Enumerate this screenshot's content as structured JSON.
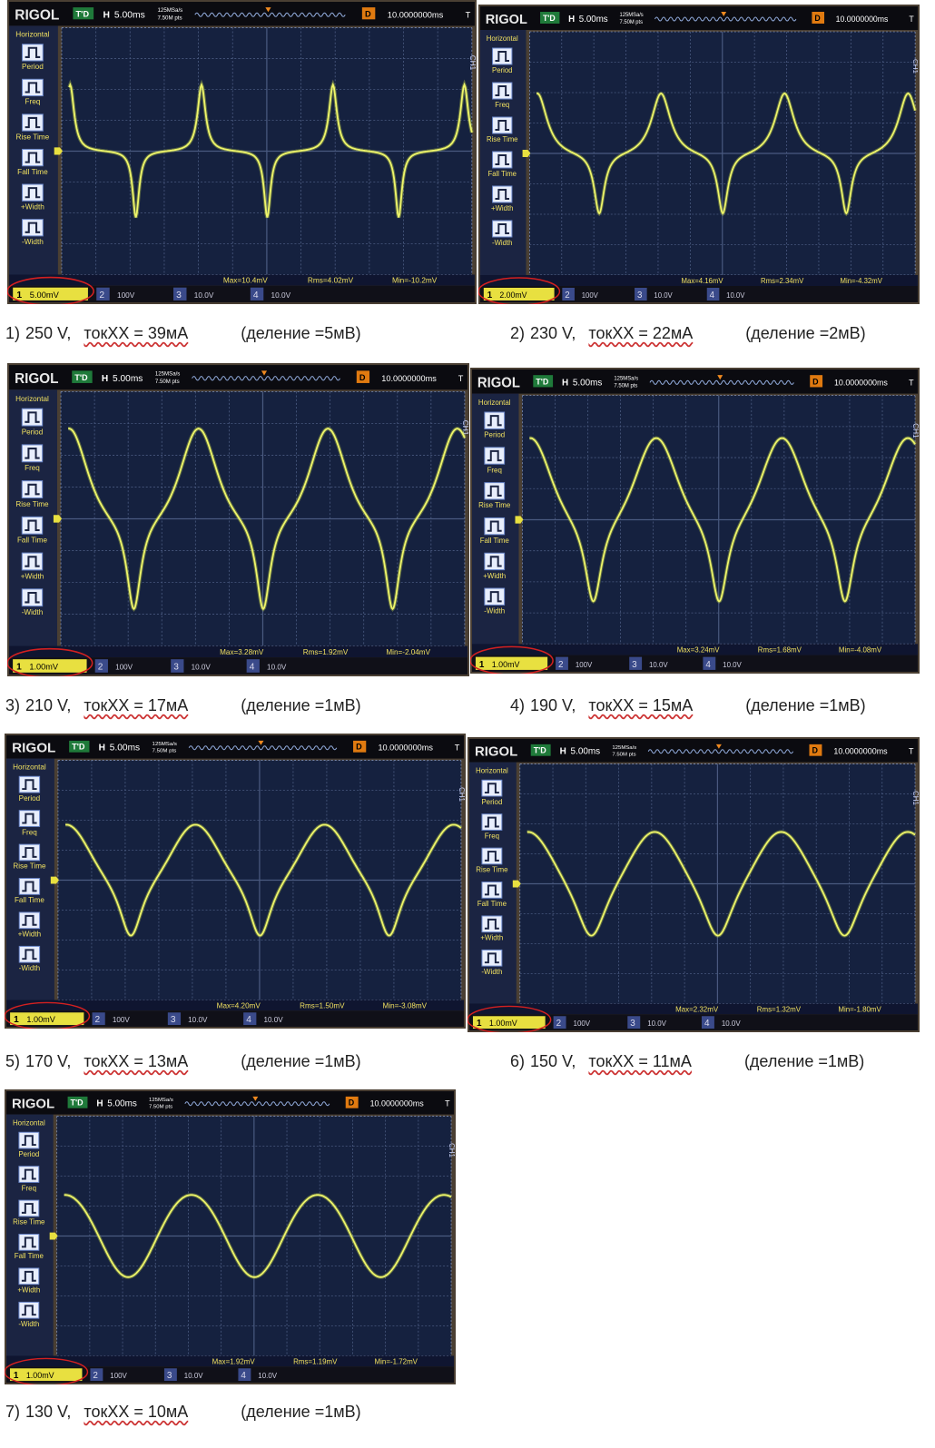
{
  "scope": {
    "brand": "RIGOL",
    "mode": "T'D",
    "h": "H",
    "timebase": "5.00ms",
    "rate": "125MSa/s",
    "depth": "7.50M pts",
    "d": "D",
    "delay": "10.0000000ms",
    "t": "T",
    "ch": "CH1",
    "menu": [
      "Horizontal",
      "Period",
      "Freq",
      "Rise Time",
      "Fall Time",
      "+Width",
      "-Width"
    ],
    "channels": [
      "1",
      "2",
      "3",
      "4"
    ],
    "other_scales": [
      "100V",
      "10.0V",
      "10.0V"
    ]
  },
  "panels": [
    {
      "scale": "5.00mV",
      "max": "Max=10.4mV",
      "rms": "Rms=4.02mV",
      "min": "Min=-10.2mV",
      "caption": {
        "number": "1)",
        "voltage": "250 V,",
        "current": "токХХ = 39мА",
        "division": "(деление =5мВ)"
      }
    },
    {
      "scale": "2.00mV",
      "max": "Max=4.16mV",
      "rms": "Rms=2.34mV",
      "min": "Min=-4.32mV",
      "caption": {
        "number": "2)",
        "voltage": "230 V,",
        "current": "токХХ = 22мА",
        "division": "(деление =2мВ)"
      }
    },
    {
      "scale": "1.00mV",
      "max": "Max=3.28mV",
      "rms": "Rms=1.92mV",
      "min": "Min=-2.04mV",
      "caption": {
        "number": "3)",
        "voltage": "210 V,",
        "current": "токХХ = 17мА",
        "division": "(деление =1мВ)"
      }
    },
    {
      "scale": "1.00mV",
      "max": "Max=3.24mV",
      "rms": "Rms=1.68mV",
      "min": "Min=-4.08mV",
      "caption": {
        "number": "4)",
        "voltage": "190 V,",
        "current": "токХХ = 15мА",
        "division": "(деление =1мВ)"
      }
    },
    {
      "scale": "1.00mV",
      "max": "Max=4.20mV",
      "rms": "Rms=1.50mV",
      "min": "Min=-3.08mV",
      "caption": {
        "number": "5)",
        "voltage": "170 V,",
        "current": "токХХ = 13мА",
        "division": "(деление =1мВ)"
      }
    },
    {
      "scale": "1.00mV",
      "max": "Max=2.32mV",
      "rms": "Rms=1.32mV",
      "min": "Min=-1.80mV",
      "caption": {
        "number": "6)",
        "voltage": "150 V,",
        "current": "токХХ = 11мА",
        "division": "(деление =1мВ)"
      }
    },
    {
      "scale": "1.00mV",
      "max": "Max=1.92mV",
      "rms": "Rms=1.19mV",
      "min": "Min=-1.72mV",
      "caption": {
        "number": "7)",
        "voltage": "130 V,",
        "current": "токХХ = 10мА",
        "division": "(деление =1мВ)"
      }
    }
  ]
}
